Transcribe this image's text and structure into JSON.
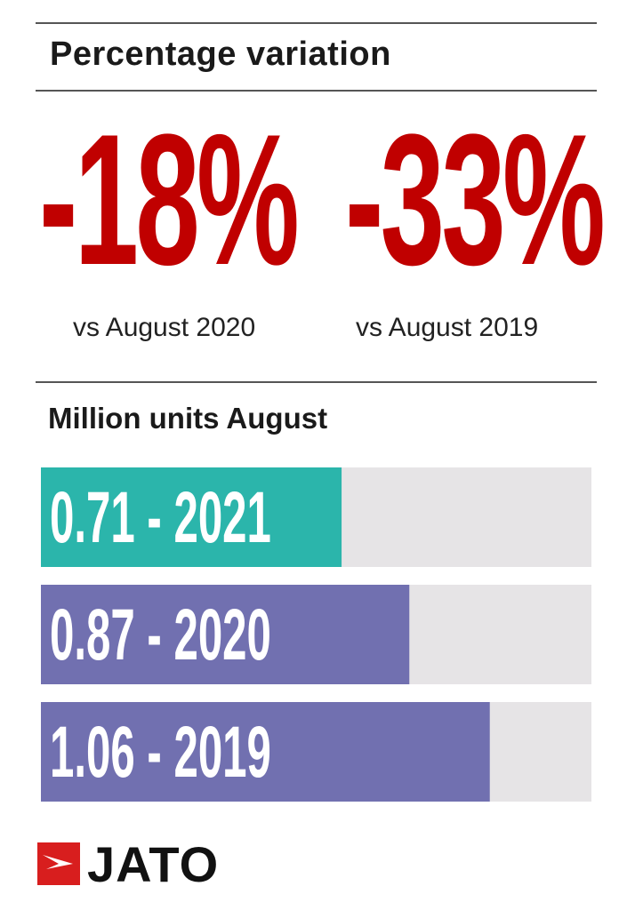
{
  "header": {
    "title": "Percentage variation"
  },
  "stats": [
    {
      "value": "-18%",
      "label": "vs August 2020"
    },
    {
      "value": "-33%",
      "label": "vs August 2019"
    }
  ],
  "colors": {
    "accent_red": "#c00000",
    "teal": "#2bb5ab",
    "purple": "#7170b0",
    "track": "#e6e4e6"
  },
  "chart_data": {
    "type": "bar",
    "orientation": "horizontal",
    "subtitle": "Million units August",
    "categories": [
      "2021",
      "2020",
      "2019"
    ],
    "values": [
      0.71,
      0.87,
      1.06
    ],
    "labels": [
      "0.71 - 2021",
      "0.87 - 2020",
      "1.06 - 2019"
    ],
    "colors": [
      "#2bb5ab",
      "#7170b0",
      "#7170b0"
    ],
    "xlim": [
      0,
      1.3
    ]
  },
  "logo": {
    "text": "JATO"
  }
}
